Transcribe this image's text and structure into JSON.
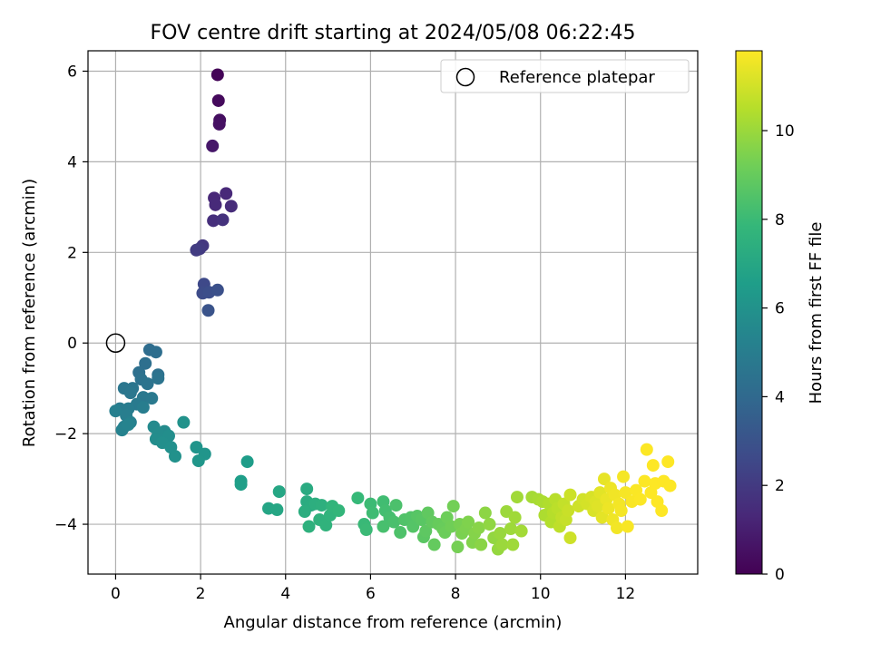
{
  "chart_data": {
    "type": "scatter",
    "title": "FOV centre drift starting at 2024/05/08 06:22:45",
    "xlabel": "Angular distance from reference (arcmin)",
    "ylabel": "Rotation from reference (arcmin)",
    "xlim": [
      -0.65,
      13.7
    ],
    "ylim": [
      -5.1,
      6.45
    ],
    "xticks": [
      0,
      2,
      4,
      6,
      8,
      10,
      12
    ],
    "yticks": [
      -4,
      -2,
      0,
      2,
      4,
      6
    ],
    "grid": true,
    "legend": {
      "position": "top-right",
      "entries": [
        "Reference platepar"
      ]
    },
    "reference_point": {
      "x": 0,
      "y": 0
    },
    "colorbar": {
      "label": "Hours from first FF file",
      "min": 0,
      "max": 11.8,
      "ticks": [
        0,
        2,
        4,
        6,
        8,
        10
      ],
      "colormap": [
        "#440154",
        "#482878",
        "#3e4a89",
        "#31688e",
        "#26828e",
        "#1f9e89",
        "#35b779",
        "#6ece58",
        "#b5de2b",
        "#fde725"
      ]
    },
    "series": [
      {
        "points": [
          [
            2.4,
            5.92,
            0.1
          ],
          [
            2.42,
            5.35,
            0.3
          ],
          [
            2.45,
            4.92,
            0.45
          ],
          [
            2.44,
            4.83,
            0.55
          ],
          [
            2.28,
            4.35,
            0.75
          ],
          [
            2.32,
            3.2,
            1.3
          ],
          [
            2.6,
            3.3,
            1.35
          ],
          [
            2.35,
            3.05,
            1.4
          ],
          [
            2.72,
            3.02,
            1.5
          ],
          [
            2.3,
            2.7,
            1.6
          ],
          [
            2.52,
            2.72,
            1.7
          ],
          [
            2.05,
            2.15,
            1.9
          ],
          [
            1.98,
            2.08,
            2.0
          ],
          [
            1.9,
            2.05,
            2.1
          ],
          [
            2.08,
            1.3,
            2.6
          ],
          [
            2.05,
            1.1,
            2.7
          ],
          [
            2.2,
            1.12,
            2.8
          ],
          [
            2.4,
            1.17,
            2.9
          ],
          [
            2.18,
            0.72,
            3.0
          ],
          [
            0.8,
            -0.15,
            4.2
          ],
          [
            0.95,
            -0.2,
            4.25
          ],
          [
            0.7,
            -0.45,
            4.3
          ],
          [
            0.55,
            -0.65,
            4.35
          ],
          [
            1.0,
            -0.7,
            4.4
          ],
          [
            0.6,
            -0.8,
            4.45
          ],
          [
            0.75,
            -0.9,
            4.5
          ],
          [
            1.0,
            -0.78,
            4.55
          ],
          [
            0.4,
            -1.0,
            4.6
          ],
          [
            0.2,
            -1.0,
            4.65
          ],
          [
            0.35,
            -1.1,
            4.7
          ],
          [
            0.65,
            -1.2,
            4.75
          ],
          [
            0.85,
            -1.22,
            4.8
          ],
          [
            0.5,
            -1.35,
            4.85
          ],
          [
            0.1,
            -1.45,
            4.9
          ],
          [
            0.3,
            -1.45,
            4.95
          ],
          [
            0.65,
            -1.42,
            5.0
          ],
          [
            0.25,
            -1.6,
            5.05
          ],
          [
            0.0,
            -1.5,
            5.1
          ],
          [
            0.35,
            -1.75,
            5.15
          ],
          [
            0.2,
            -1.85,
            5.2
          ],
          [
            0.15,
            -1.92,
            5.25
          ],
          [
            0.3,
            -1.8,
            5.3
          ],
          [
            0.9,
            -1.85,
            5.6
          ],
          [
            1.15,
            -1.95,
            5.65
          ],
          [
            1.0,
            -2.0,
            5.7
          ],
          [
            0.95,
            -2.12,
            5.75
          ],
          [
            1.25,
            -2.05,
            5.8
          ],
          [
            1.1,
            -2.2,
            5.85
          ],
          [
            1.3,
            -2.3,
            5.9
          ],
          [
            1.4,
            -2.5,
            5.95
          ],
          [
            1.6,
            -1.75,
            6.0
          ],
          [
            1.9,
            -2.3,
            6.1
          ],
          [
            2.1,
            -2.45,
            6.15
          ],
          [
            1.95,
            -2.6,
            6.2
          ],
          [
            3.1,
            -2.62,
            6.5
          ],
          [
            2.95,
            -3.05,
            6.55
          ],
          [
            2.95,
            -3.12,
            6.6
          ],
          [
            3.6,
            -3.65,
            6.9
          ],
          [
            3.8,
            -3.68,
            6.95
          ],
          [
            3.85,
            -3.28,
            7.0
          ],
          [
            4.5,
            -3.22,
            7.2
          ],
          [
            4.5,
            -3.5,
            7.25
          ],
          [
            4.6,
            -3.58,
            7.3
          ],
          [
            4.45,
            -3.72,
            7.35
          ],
          [
            4.7,
            -3.55,
            7.4
          ],
          [
            4.85,
            -3.58,
            7.45
          ],
          [
            4.55,
            -4.05,
            7.5
          ],
          [
            4.8,
            -3.9,
            7.55
          ],
          [
            4.95,
            -4.02,
            7.6
          ],
          [
            5.05,
            -3.8,
            7.65
          ],
          [
            5.1,
            -3.6,
            7.7
          ],
          [
            5.25,
            -3.7,
            7.75
          ],
          [
            5.7,
            -3.42,
            7.9
          ],
          [
            5.85,
            -4.0,
            7.95
          ],
          [
            5.9,
            -4.12,
            8.0
          ],
          [
            6.0,
            -3.55,
            8.05
          ],
          [
            6.05,
            -3.75,
            8.1
          ],
          [
            6.3,
            -3.5,
            8.15
          ],
          [
            6.35,
            -3.7,
            8.2
          ],
          [
            6.45,
            -3.85,
            8.25
          ],
          [
            6.3,
            -4.05,
            8.3
          ],
          [
            6.55,
            -3.95,
            8.35
          ],
          [
            6.6,
            -3.58,
            8.4
          ],
          [
            6.7,
            -4.18,
            8.45
          ],
          [
            6.8,
            -3.9,
            8.5
          ],
          [
            6.95,
            -3.85,
            8.55
          ],
          [
            7.0,
            -4.05,
            8.6
          ],
          [
            7.1,
            -3.82,
            8.65
          ],
          [
            7.2,
            -3.9,
            8.7
          ],
          [
            7.25,
            -4.28,
            8.75
          ],
          [
            7.3,
            -4.15,
            8.8
          ],
          [
            7.35,
            -3.75,
            8.85
          ],
          [
            7.45,
            -3.95,
            8.9
          ],
          [
            7.5,
            -4.45,
            8.95
          ],
          [
            7.6,
            -4.0,
            9.0
          ],
          [
            7.7,
            -4.1,
            9.05
          ],
          [
            7.75,
            -4.18,
            9.1
          ],
          [
            7.8,
            -3.85,
            9.15
          ],
          [
            7.9,
            -4.05,
            9.2
          ],
          [
            7.95,
            -3.6,
            9.25
          ],
          [
            8.05,
            -4.5,
            9.3
          ],
          [
            8.1,
            -4.0,
            9.35
          ],
          [
            8.15,
            -4.2,
            9.4
          ],
          [
            8.25,
            -4.1,
            9.45
          ],
          [
            8.3,
            -3.95,
            9.5
          ],
          [
            8.4,
            -4.4,
            9.55
          ],
          [
            8.45,
            -4.2,
            9.6
          ],
          [
            8.55,
            -4.08,
            9.65
          ],
          [
            8.6,
            -4.45,
            9.7
          ],
          [
            8.7,
            -3.75,
            9.75
          ],
          [
            8.8,
            -4.0,
            9.8
          ],
          [
            8.9,
            -4.3,
            9.85
          ],
          [
            9.0,
            -4.55,
            9.9
          ],
          [
            9.05,
            -4.2,
            9.95
          ],
          [
            9.1,
            -4.45,
            10.0
          ],
          [
            9.2,
            -3.72,
            10.02
          ],
          [
            9.3,
            -4.1,
            10.05
          ],
          [
            9.35,
            -4.45,
            10.08
          ],
          [
            9.4,
            -3.85,
            10.1
          ],
          [
            9.45,
            -3.4,
            10.12
          ],
          [
            9.55,
            -4.15,
            10.15
          ],
          [
            9.8,
            -3.4,
            10.2
          ],
          [
            9.95,
            -3.45,
            10.25
          ],
          [
            10.05,
            -3.5,
            10.3
          ],
          [
            10.1,
            -3.8,
            10.35
          ],
          [
            10.2,
            -3.55,
            10.4
          ],
          [
            10.25,
            -3.95,
            10.45
          ],
          [
            10.3,
            -3.75,
            10.5
          ],
          [
            10.35,
            -3.45,
            10.55
          ],
          [
            10.4,
            -3.65,
            10.6
          ],
          [
            10.45,
            -4.05,
            10.65
          ],
          [
            10.5,
            -3.85,
            10.7
          ],
          [
            10.55,
            -3.55,
            10.75
          ],
          [
            10.6,
            -3.9,
            10.8
          ],
          [
            10.65,
            -3.7,
            10.85
          ],
          [
            10.7,
            -3.35,
            10.9
          ],
          [
            10.7,
            -4.3,
            10.92
          ],
          [
            10.9,
            -3.6,
            10.95
          ],
          [
            11.0,
            -3.45,
            11.0
          ],
          [
            11.1,
            -3.55,
            11.05
          ],
          [
            11.2,
            -3.4,
            11.1
          ],
          [
            11.25,
            -3.7,
            11.15
          ],
          [
            11.3,
            -3.5,
            11.2
          ],
          [
            11.35,
            -3.6,
            11.25
          ],
          [
            11.4,
            -3.3,
            11.3
          ],
          [
            11.45,
            -3.85,
            11.35
          ],
          [
            11.5,
            -3.0,
            11.4
          ],
          [
            11.55,
            -3.45,
            11.45
          ],
          [
            11.6,
            -3.65,
            11.5
          ],
          [
            11.65,
            -3.2,
            11.52
          ],
          [
            11.7,
            -3.9,
            11.55
          ],
          [
            11.75,
            -3.35,
            11.58
          ],
          [
            11.8,
            -4.08,
            11.6
          ],
          [
            11.85,
            -3.55,
            11.62
          ],
          [
            11.9,
            -3.7,
            11.64
          ],
          [
            11.95,
            -2.95,
            11.66
          ],
          [
            12.0,
            -3.3,
            11.68
          ],
          [
            12.05,
            -4.05,
            11.7
          ],
          [
            12.15,
            -3.5,
            11.72
          ],
          [
            12.25,
            -3.25,
            11.74
          ],
          [
            12.35,
            -3.45,
            11.76
          ],
          [
            12.45,
            -3.05,
            11.78
          ],
          [
            12.5,
            -2.35,
            11.79
          ],
          [
            12.6,
            -3.3,
            11.8
          ],
          [
            12.65,
            -2.7,
            11.8
          ],
          [
            12.7,
            -3.1,
            11.8
          ],
          [
            12.75,
            -3.5,
            11.8
          ],
          [
            12.85,
            -3.7,
            11.8
          ],
          [
            12.9,
            -3.05,
            11.8
          ],
          [
            13.0,
            -2.62,
            11.8
          ],
          [
            13.05,
            -3.15,
            11.8
          ]
        ]
      }
    ]
  }
}
